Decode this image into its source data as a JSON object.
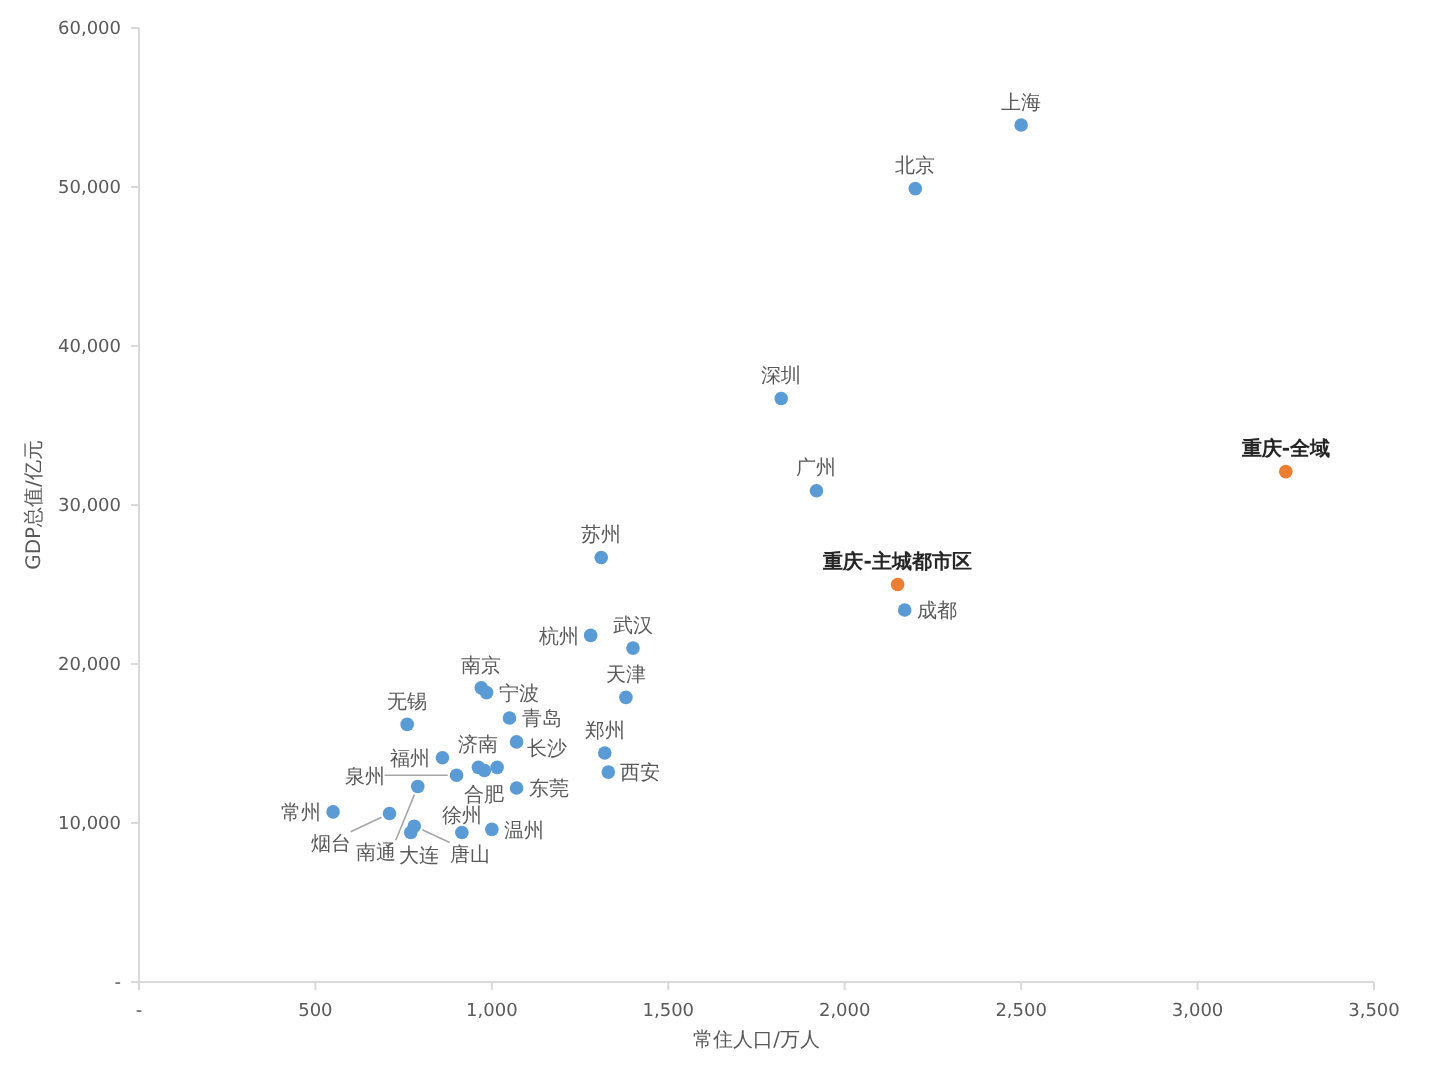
{
  "chart_data": {
    "type": "scatter",
    "xlabel": "常住人口/万人",
    "ylabel": "GDP总值/亿元",
    "marker": "circle",
    "xlim": [
      0,
      3500
    ],
    "ylim": [
      0,
      60000
    ],
    "xticks": [
      {
        "value": 0,
        "label": "-"
      },
      500,
      {
        "value": 1000,
        "label": "1,000"
      },
      {
        "value": 1500,
        "label": "1,500"
      },
      {
        "value": 2000,
        "label": "2,000"
      },
      {
        "value": 2500,
        "label": "2,500"
      },
      {
        "value": 3000,
        "label": "3,000"
      },
      {
        "value": 3500,
        "label": "3,500"
      }
    ],
    "yticks": [
      {
        "value": 0,
        "label": "-"
      },
      {
        "value": 10000,
        "label": "10,000"
      },
      {
        "value": 20000,
        "label": "20,000"
      },
      {
        "value": 30000,
        "label": "30,000"
      },
      {
        "value": 40000,
        "label": "40,000"
      },
      {
        "value": 50000,
        "label": "50,000"
      },
      {
        "value": 60000,
        "label": "60,000"
      }
    ],
    "series": [
      {
        "color": "#5b9bd5",
        "x": [
          2500,
          2200,
          1820,
          1920,
          1310,
          2170,
          1280,
          1400,
          1380,
          1320,
          1330,
          970,
          985,
          1050,
          1070,
          760,
          860,
          900,
          962,
          979,
          1015,
          790,
          1070,
          550,
          710,
          780,
          770,
          915,
          1000
        ],
        "values": [
          53900,
          49900,
          36700,
          30900,
          26700,
          23400,
          21800,
          21000,
          17900,
          14400,
          13200,
          18500,
          18200,
          16600,
          15100,
          16200,
          14100,
          13000,
          13500,
          13300,
          13500,
          12300,
          12200,
          10700,
          10600,
          9800,
          9400,
          9400,
          9600
        ]
      },
      {
        "color": "#ed7d31",
        "x": [
          2150,
          3250
        ],
        "values": [
          25000,
          32100
        ]
      }
    ],
    "annotations": [
      {
        "text": "重庆-全域",
        "x": 3250,
        "y": 32100
      },
      {
        "text": "重庆-主城都市区",
        "x": 2150,
        "y": 25000
      },
      {
        "text": "上海",
        "x": 2500,
        "y": 53900
      },
      {
        "text": "北京",
        "x": 2200,
        "y": 49900
      },
      {
        "text": "深圳",
        "x": 1820,
        "y": 36700
      },
      {
        "text": "广州",
        "x": 1920,
        "y": 30900
      },
      {
        "text": "苏州",
        "x": 1310,
        "y": 26700
      },
      {
        "text": "成都",
        "x": 2170,
        "y": 23400
      },
      {
        "text": "杭州",
        "x": 1280,
        "y": 21800
      },
      {
        "text": "武汉",
        "x": 1400,
        "y": 21000
      },
      {
        "text": "天津",
        "x": 1380,
        "y": 17900
      },
      {
        "text": "郑州",
        "x": 1320,
        "y": 14400
      },
      {
        "text": "西安",
        "x": 1330,
        "y": 13200
      },
      {
        "text": "南京",
        "x": 970,
        "y": 18500
      },
      {
        "text": "宁波",
        "x": 985,
        "y": 18200
      },
      {
        "text": "青岛",
        "x": 1050,
        "y": 16600
      },
      {
        "text": "长沙",
        "x": 1070,
        "y": 15100
      },
      {
        "text": "无锡",
        "x": 760,
        "y": 16200
      },
      {
        "text": "福州",
        "x": 860,
        "y": 14100
      },
      {
        "text": "泉州",
        "x": 900,
        "y": 13000
      },
      {
        "text": "济南",
        "x": 962,
        "y": 13500
      },
      {
        "text": "合肥",
        "x": 979,
        "y": 13300
      },
      {
        "text": "南通",
        "x": 790,
        "y": 12300
      },
      {
        "text": "东莞",
        "x": 1070,
        "y": 12200
      },
      {
        "text": "常州",
        "x": 550,
        "y": 10700
      },
      {
        "text": "烟台",
        "x": 710,
        "y": 10600
      },
      {
        "text": "唐山",
        "x": 780,
        "y": 9800
      },
      {
        "text": "大连",
        "x": 770,
        "y": 9400
      },
      {
        "text": "徐州",
        "x": 915,
        "y": 9400
      },
      {
        "text": "温州",
        "x": 1000,
        "y": 9600
      }
    ]
  }
}
